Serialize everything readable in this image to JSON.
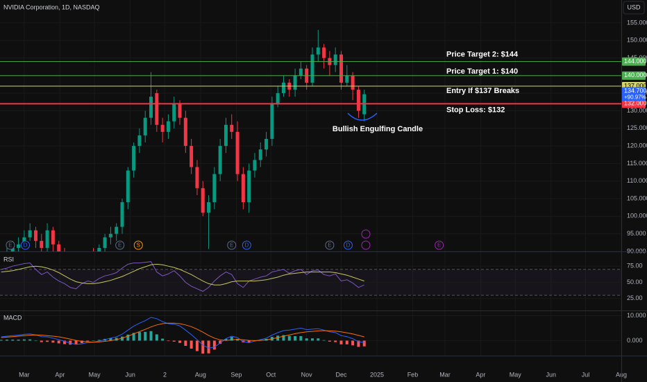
{
  "chart_data": [
    {
      "type": "candlestick",
      "title": "NVIDIA Corporation, 1D, NASDAQ",
      "currency": "USD",
      "x": [
        -20,
        -15,
        -10,
        -5,
        0,
        5,
        10,
        15,
        20,
        25,
        30,
        35,
        40,
        45,
        50,
        55,
        60,
        65,
        70,
        75,
        80,
        85,
        90,
        95,
        100,
        105,
        110,
        115,
        120,
        125,
        130,
        135,
        140,
        145,
        150,
        155,
        160,
        165,
        170,
        175,
        180,
        185,
        190,
        195,
        200,
        205,
        210,
        215,
        220,
        225,
        230,
        235,
        240,
        245,
        250,
        255,
        260,
        265,
        270,
        275,
        280,
        285,
        290,
        295
      ],
      "open": [
        87,
        88,
        89.5,
        91,
        92.5,
        94,
        96,
        93,
        91,
        96,
        92,
        90,
        88,
        85,
        84,
        87,
        89,
        88,
        91,
        94,
        95,
        97,
        104,
        113,
        120,
        123,
        128,
        135,
        126,
        124,
        127,
        132,
        128,
        120,
        114,
        108,
        101,
        104,
        112,
        120,
        126,
        124,
        112,
        104,
        113,
        116,
        119,
        122,
        132,
        135,
        138,
        136,
        140,
        142,
        138,
        146,
        148,
        145,
        143,
        146,
        138,
        140,
        136,
        129
      ],
      "high": [
        90,
        91,
        93,
        94,
        96,
        98,
        97,
        95,
        98,
        97,
        93,
        91,
        90,
        87,
        88,
        90,
        91,
        92,
        95,
        97,
        98,
        105,
        114,
        121,
        125,
        130,
        141,
        136,
        128,
        129,
        134,
        133,
        130,
        122,
        116,
        110,
        106,
        114,
        122,
        128,
        129,
        127,
        114,
        115,
        118,
        121,
        124,
        134,
        137,
        140,
        139,
        142,
        144,
        143,
        148,
        153,
        149,
        147,
        148,
        147,
        143,
        141,
        137,
        136
      ],
      "low": [
        85,
        86,
        88,
        89,
        91,
        93,
        91,
        89,
        90,
        90,
        88,
        86,
        83,
        82,
        82,
        85,
        86,
        86,
        89,
        92,
        93,
        95,
        102,
        111,
        118,
        121,
        126,
        124,
        121,
        122,
        125,
        126,
        118,
        112,
        106,
        100,
        90.7,
        102,
        110,
        118,
        122,
        110,
        102,
        101,
        111,
        114,
        117,
        120,
        131,
        134,
        134,
        134,
        139,
        136,
        137,
        144,
        142,
        140,
        141,
        136,
        137,
        133,
        128,
        127
      ],
      "close": [
        88,
        89,
        91,
        92,
        94,
        96,
        93,
        91,
        96,
        92,
        90,
        88,
        85,
        84,
        87,
        89,
        88,
        91,
        94,
        95,
        97,
        104,
        113,
        120,
        123,
        128,
        134,
        126,
        124,
        127,
        132,
        128,
        120,
        114,
        108,
        101,
        104,
        112,
        120,
        126,
        124,
        112,
        104,
        113,
        116,
        119,
        122,
        132,
        135,
        138,
        136,
        140,
        142,
        138,
        146,
        148,
        145,
        143,
        146,
        138,
        140,
        136,
        130,
        134.7
      ],
      "up_color": "#089981",
      "down_color": "#f23645",
      "xlim": [
        -21,
        518
      ],
      "xticks": [
        {
          "value": 0,
          "label": "Mar"
        },
        {
          "value": 31,
          "label": "Apr"
        },
        {
          "value": 61,
          "label": "May"
        },
        {
          "value": 92,
          "label": "Jun"
        },
        {
          "value": 122,
          "label": "2"
        },
        {
          "value": 153,
          "label": "Aug"
        },
        {
          "value": 184,
          "label": "Sep"
        },
        {
          "value": 214,
          "label": "Oct"
        },
        {
          "value": 245,
          "label": "Nov"
        },
        {
          "value": 275,
          "label": "Dec"
        },
        {
          "value": 306,
          "label": "2025"
        },
        {
          "value": 337,
          "label": "Feb"
        },
        {
          "value": 365,
          "label": "Mar"
        },
        {
          "value": 396,
          "label": "Apr"
        },
        {
          "value": 426,
          "label": "May"
        },
        {
          "value": 457,
          "label": "Jun"
        },
        {
          "value": 487,
          "label": "Jul"
        },
        {
          "value": 518,
          "label": "Aug"
        }
      ],
      "ylim": [
        90,
        161.5
      ],
      "yticks": [
        {
          "value": 90,
          "label": "90.000"
        },
        {
          "value": 95,
          "label": "95.000"
        },
        {
          "value": 100,
          "label": "100.000"
        },
        {
          "value": 105,
          "label": "105.000"
        },
        {
          "value": 110,
          "label": "110.000"
        },
        {
          "value": 115,
          "label": "115.000"
        },
        {
          "value": 120,
          "label": "120.000"
        },
        {
          "value": 125,
          "label": "125.000"
        },
        {
          "value": 130,
          "label": "130.000"
        },
        {
          "value": 135,
          "label": "135.000"
        },
        {
          "value": 140,
          "label": "140.000"
        },
        {
          "value": 145,
          "label": "145.000"
        },
        {
          "value": 150,
          "label": "150.000"
        },
        {
          "value": 155,
          "label": "155.000"
        }
      ],
      "levels": [
        {
          "value": 144,
          "label": "Price Target 2: $144",
          "badge": "144.000",
          "color": "#4caf50"
        },
        {
          "value": 140,
          "label": "Price Target 1: $140",
          "badge": "140.000",
          "color": "#4caf50"
        },
        {
          "value": 137,
          "label": "Entry If $137 Breaks",
          "badge": "137.000",
          "color": "#d4d46a"
        },
        {
          "value": 132,
          "label": "Stop Loss: $132",
          "badge": "132.000",
          "color": "#f23645"
        }
      ],
      "last": {
        "value": 134.7,
        "label": "134.700",
        "change": "+90.97%",
        "color": "#2962ff"
      },
      "annotation": "Bullish Engulfing Candle",
      "events": [
        {
          "x": -12,
          "label": "E",
          "color": "#5d6b8a"
        },
        {
          "x": 1,
          "label": "D",
          "color": "#2962ff"
        },
        {
          "x": 83,
          "label": "E",
          "color": "#5d6b8a"
        },
        {
          "x": 99,
          "label": "S",
          "color": "#ff9800"
        },
        {
          "x": 180,
          "label": "E",
          "color": "#5d6b8a"
        },
        {
          "x": 193,
          "label": "D",
          "color": "#2962ff"
        },
        {
          "x": 265,
          "label": "E",
          "color": "#5d6b8a"
        },
        {
          "x": 281,
          "label": "D",
          "color": "#2962ff"
        },
        {
          "x": 360,
          "label": "E",
          "color": "#9c27b0"
        }
      ]
    },
    {
      "type": "line",
      "title": "RSI",
      "ylim": [
        6.5,
        96.7
      ],
      "yticks": [
        {
          "value": 75,
          "label": "75.00"
        },
        {
          "value": 50,
          "label": "50.00"
        },
        {
          "value": 25,
          "label": "25.00"
        }
      ],
      "band": [
        30,
        70
      ],
      "series": [
        {
          "color": "#7e57c2",
          "values": [
            70,
            72,
            75,
            77,
            79,
            80,
            70,
            62,
            66,
            58,
            52,
            48,
            42,
            40,
            48,
            52,
            50,
            56,
            60,
            62,
            65,
            72,
            78,
            80,
            80,
            81,
            82,
            66,
            60,
            63,
            68,
            60,
            50,
            44,
            40,
            36,
            42,
            52,
            60,
            66,
            62,
            48,
            42,
            52,
            55,
            58,
            60,
            66,
            68,
            70,
            64,
            68,
            70,
            62,
            68,
            69,
            62,
            60,
            63,
            52,
            54,
            49,
            42,
            46
          ]
        },
        {
          "color": "#c9c95b",
          "values": [
            66,
            67,
            68,
            70,
            72,
            74,
            75,
            74,
            72,
            69,
            65,
            60,
            55,
            51,
            49,
            48,
            48,
            49,
            51,
            53,
            56,
            59,
            63,
            67,
            71,
            74,
            77,
            78,
            77,
            75,
            73,
            70,
            66,
            62,
            57,
            52,
            48,
            46,
            46,
            48,
            51,
            52,
            52,
            52,
            52,
            53,
            54,
            56,
            58,
            61,
            63,
            64,
            65,
            66,
            66,
            66,
            66,
            66,
            65,
            63,
            61,
            58,
            55,
            52
          ]
        }
      ]
    },
    {
      "type": "macd",
      "title": "MACD",
      "ylim": [
        -6,
        11.8
      ],
      "yticks": [
        {
          "value": 10,
          "label": "10.000"
        },
        {
          "value": 0,
          "label": "0.000"
        }
      ],
      "series": [
        {
          "color": "#2962ff",
          "values": [
            1.5,
            1.8,
            2.0,
            2.2,
            2.5,
            2.7,
            2.3,
            1.6,
            1.5,
            1.0,
            0.4,
            -0.3,
            -1.0,
            -1.5,
            -1.3,
            -0.8,
            -0.6,
            -0.2,
            0.4,
            1.0,
            1.5,
            2.6,
            4.2,
            5.8,
            7.0,
            8.0,
            9.3,
            8.8,
            7.6,
            6.8,
            6.6,
            5.9,
            4.2,
            2.4,
            0.4,
            -1.8,
            -3.0,
            -2.6,
            -1.0,
            0.8,
            1.8,
            1.2,
            -0.4,
            -0.8,
            -0.2,
            0.4,
            1.0,
            2.2,
            3.2,
            4.0,
            4.2,
            4.6,
            5.0,
            4.4,
            4.6,
            4.8,
            4.2,
            3.5,
            3.2,
            2.0,
            1.6,
            0.8,
            -0.4,
            -0.8
          ]
        },
        {
          "color": "#ff6d00",
          "values": [
            1.2,
            1.4,
            1.6,
            1.8,
            2.0,
            2.2,
            2.3,
            2.2,
            2.0,
            1.8,
            1.5,
            1.1,
            0.6,
            0.1,
            -0.3,
            -0.5,
            -0.6,
            -0.5,
            -0.3,
            0.0,
            0.4,
            1.0,
            1.8,
            2.7,
            3.6,
            4.5,
            5.5,
            6.3,
            6.8,
            7.0,
            7.0,
            6.8,
            6.3,
            5.6,
            4.6,
            3.4,
            2.1,
            1.0,
            0.3,
            0.1,
            0.3,
            0.5,
            0.3,
            0.1,
            0.0,
            0.1,
            0.3,
            0.7,
            1.2,
            1.8,
            2.3,
            2.8,
            3.2,
            3.5,
            3.7,
            3.9,
            4.0,
            3.9,
            3.8,
            3.5,
            3.1,
            2.7,
            2.1,
            1.5
          ]
        }
      ],
      "histogram": {
        "up_color": "#26a69a",
        "down_color": "#ff5252",
        "values": [
          0.3,
          0.4,
          0.4,
          0.4,
          0.5,
          0.5,
          0.0,
          -0.6,
          -0.5,
          -0.8,
          -1.1,
          -1.4,
          -1.6,
          -1.6,
          -1.0,
          -0.3,
          0.0,
          0.3,
          0.7,
          1.0,
          1.1,
          1.6,
          2.4,
          3.1,
          3.4,
          3.5,
          3.8,
          2.5,
          0.8,
          -0.2,
          -0.4,
          -0.9,
          -2.1,
          -3.2,
          -4.2,
          -5.2,
          -5.1,
          -3.6,
          -1.3,
          0.7,
          1.5,
          0.7,
          -0.7,
          -0.9,
          -0.2,
          0.3,
          0.7,
          1.5,
          2.0,
          2.2,
          1.9,
          1.8,
          1.8,
          0.9,
          0.9,
          0.9,
          0.2,
          -0.4,
          -0.6,
          -1.5,
          -1.5,
          -1.9,
          -2.5,
          -2.3
        ]
      }
    }
  ]
}
